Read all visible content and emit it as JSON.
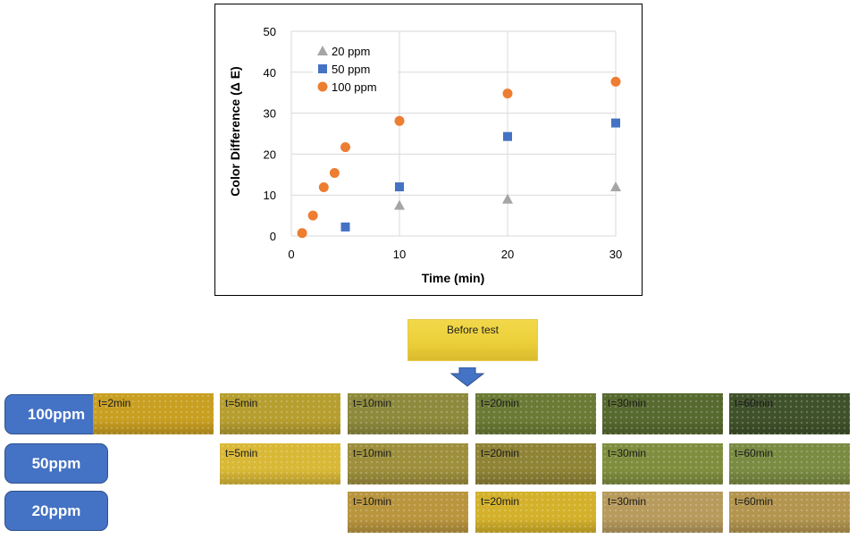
{
  "chart_data": {
    "type": "scatter",
    "title": "",
    "xlabel": "Time (min)",
    "ylabel": "Color Difference (Δ E)",
    "xlim": [
      0,
      30
    ],
    "ylim": [
      0,
      50
    ],
    "xticks": [
      0,
      10,
      20,
      30
    ],
    "yticks": [
      0,
      10,
      20,
      30,
      40,
      50
    ],
    "grid": "vertical and horizontal major gridlines",
    "legend_position": "top-left",
    "series": [
      {
        "name": "20 ppm",
        "marker": "triangle",
        "color": "#a5a5a5",
        "x": [
          10,
          20,
          30
        ],
        "y": [
          7.5,
          9.0,
          12.0
        ]
      },
      {
        "name": "50 ppm",
        "marker": "square",
        "color": "#4472c4",
        "x": [
          5,
          10,
          20,
          30
        ],
        "y": [
          2.2,
          12.0,
          24.3,
          27.6
        ]
      },
      {
        "name": "100 ppm",
        "marker": "circle",
        "color": "#ed7d31",
        "x": [
          1,
          2,
          3,
          4,
          5,
          10,
          20,
          30
        ],
        "y": [
          0.7,
          5.0,
          11.9,
          15.4,
          21.7,
          28.1,
          34.8,
          37.7
        ]
      }
    ]
  },
  "panel": {
    "before_label": "Before test",
    "rows": [
      {
        "label": "100ppm",
        "strips": [
          "t=2min",
          "t=5min",
          "t=10min",
          "t=20min",
          "t=30min",
          "t=60min"
        ],
        "colors": [
          "#c99f21",
          "#b69e2f",
          "#8e8a3d",
          "#6b7a34",
          "#56692f",
          "#3f512a"
        ]
      },
      {
        "label": "50ppm",
        "strips": [
          "t=5min",
          "t=10min",
          "t=20min",
          "t=30min",
          "t=60min"
        ],
        "colors": [
          "#d9b836",
          "#9e8f3c",
          "#8f8336",
          "#7f8e3e",
          "#7a8b42"
        ]
      },
      {
        "label": "20ppm",
        "strips": [
          "t=10min",
          "t=20min",
          "t=30min",
          "t=60min"
        ],
        "colors": [
          "#b9953e",
          "#d4b12a",
          "#b79a5c",
          "#b3954f"
        ]
      }
    ]
  }
}
